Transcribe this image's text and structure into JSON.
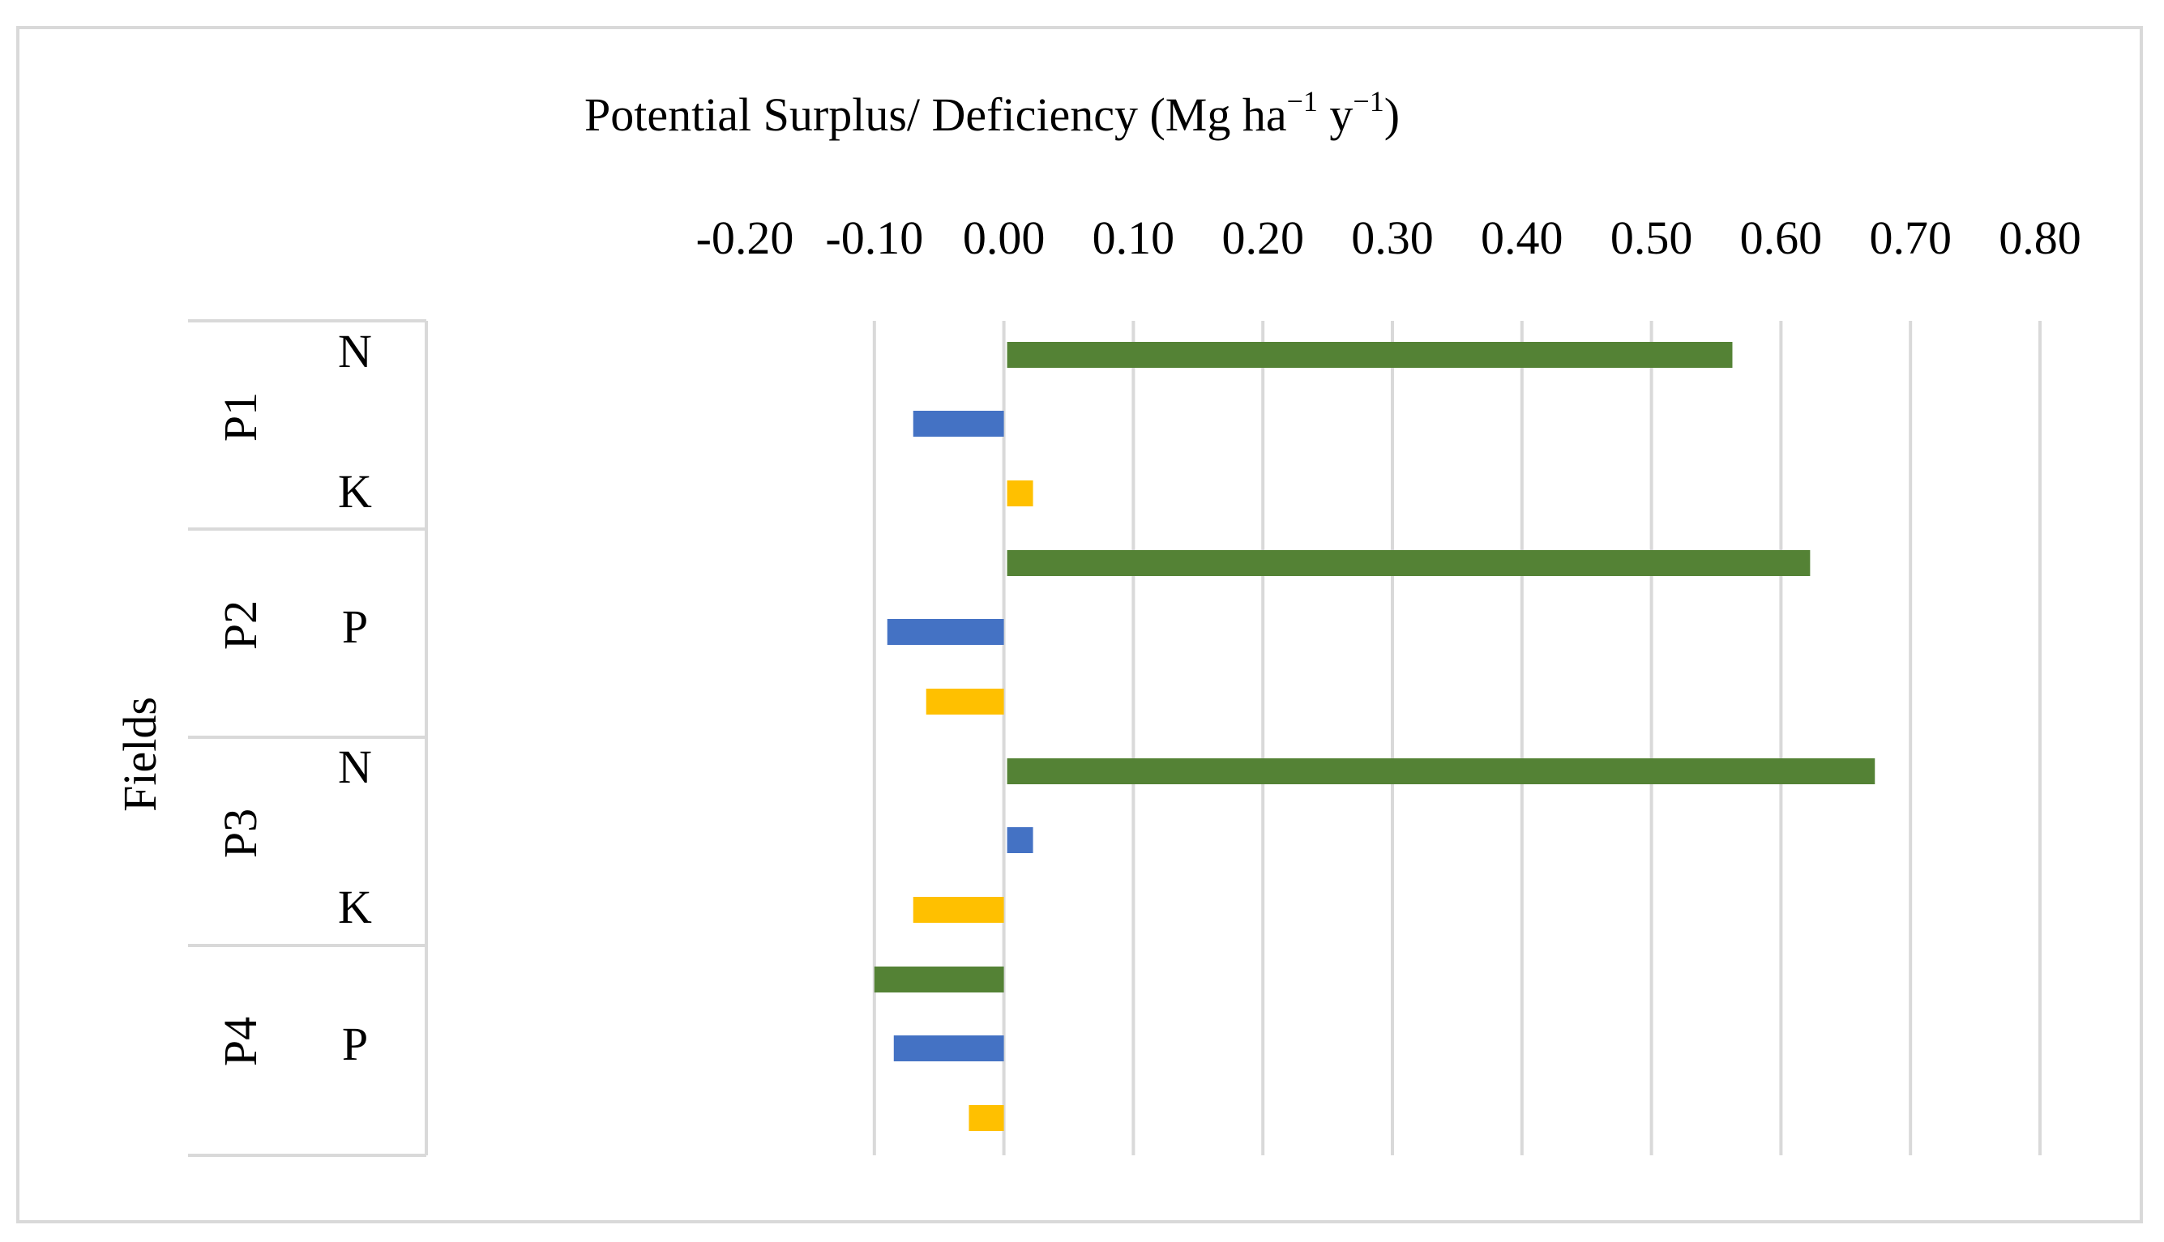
{
  "chart_data": {
    "type": "bar",
    "orientation": "horizontal",
    "title": "Potential Surplus/ Deficiency (Mg ha",
    "title_unit_parts": [
      {
        "text": "Potential Surplus/ Deficiency (Mg ha",
        "sup": false
      },
      {
        "text": "−1",
        "sup": true
      },
      {
        "text": " y",
        "sup": false
      },
      {
        "text": "−1",
        "sup": true
      },
      {
        "text": ")",
        "sup": false
      }
    ],
    "ylabel": "Fields",
    "xlabel": "",
    "xlim": [
      -0.2,
      0.8
    ],
    "ticks": [
      -0.2,
      -0.1,
      0.0,
      0.1,
      0.2,
      0.3,
      0.4,
      0.5,
      0.6,
      0.7,
      0.8
    ],
    "tick_labels": [
      "-0.20",
      "-0.10",
      "0.00",
      "0.10",
      "0.20",
      "0.30",
      "0.40",
      "0.50",
      "0.60",
      "0.70",
      "0.80"
    ],
    "grid": true,
    "groups": [
      "P1",
      "P2",
      "P3",
      "P4"
    ],
    "category_labels": [
      "N",
      "K",
      "P",
      "N",
      "K",
      "P"
    ],
    "series": [
      {
        "name": "N",
        "color": "#548235",
        "values": [
          0.56,
          0.62,
          0.67,
          -0.1
        ]
      },
      {
        "name": "P",
        "color": "#4472C4",
        "values": [
          -0.07,
          -0.09,
          0.02,
          -0.085
        ]
      },
      {
        "name": "K",
        "color": "#FFC000",
        "values": [
          0.02,
          -0.06,
          -0.07,
          -0.027
        ]
      }
    ]
  }
}
